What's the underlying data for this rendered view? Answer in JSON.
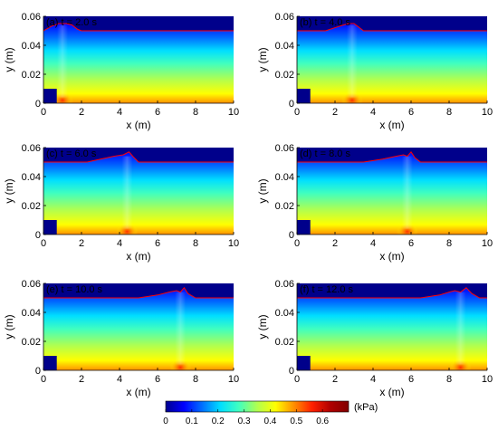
{
  "chart_data": [
    {
      "type": "heatmap",
      "title": "(a) t = 2.0 s",
      "xlabel": "x (m)",
      "ylabel": "y (m)",
      "xlim": [
        0,
        10
      ],
      "ylim": [
        0,
        0.06
      ],
      "xticks": [
        "0",
        "2",
        "4",
        "6",
        "8",
        "10"
      ],
      "yticks": [
        "0",
        "0.02",
        "0.04",
        "0.06"
      ],
      "surface_x": [
        0,
        0.4,
        0.8,
        1.2,
        1.5,
        1.8,
        2.0,
        10
      ],
      "surface_y": [
        0.05,
        0.053,
        0.055,
        0.055,
        0.054,
        0.051,
        0.05,
        0.05
      ],
      "peak_x": 1.0,
      "block_x": [
        0,
        0.7
      ],
      "block_y": [
        0,
        0.01
      ]
    },
    {
      "type": "heatmap",
      "title": "(b) t = 4.0 s",
      "xlabel": "x (m)",
      "ylabel": "y (m)",
      "xlim": [
        0,
        10
      ],
      "ylim": [
        0,
        0.06
      ],
      "xticks": [
        "0",
        "2",
        "4",
        "6",
        "8",
        "10"
      ],
      "yticks": [
        "0",
        "0.02",
        "0.04",
        "0.06"
      ],
      "surface_x": [
        0,
        1.5,
        2.2,
        2.7,
        3.0,
        3.2,
        3.5,
        10
      ],
      "surface_y": [
        0.05,
        0.05,
        0.053,
        0.055,
        0.055,
        0.053,
        0.05,
        0.05
      ],
      "peak_x": 2.9,
      "block_x": [
        0,
        0.7
      ],
      "block_y": [
        0,
        0.01
      ]
    },
    {
      "type": "heatmap",
      "title": "(c) t = 6.0 s",
      "xlabel": "x (m)",
      "ylabel": "y (m)",
      "xlim": [
        0,
        10
      ],
      "ylim": [
        0,
        0.06
      ],
      "xticks": [
        "0",
        "2",
        "4",
        "6",
        "8",
        "10"
      ],
      "yticks": [
        "0",
        "0.02",
        "0.04",
        "0.06"
      ],
      "surface_x": [
        0,
        2.3,
        3.0,
        3.7,
        4.2,
        4.5,
        4.7,
        5.0,
        10
      ],
      "surface_y": [
        0.05,
        0.05,
        0.052,
        0.054,
        0.055,
        0.057,
        0.054,
        0.05,
        0.05
      ],
      "peak_x": 4.4,
      "block_x": [
        0,
        0.7
      ],
      "block_y": [
        0,
        0.01
      ]
    },
    {
      "type": "heatmap",
      "title": "(d) t = 8.0 s",
      "xlabel": "x (m)",
      "ylabel": "y (m)",
      "xlim": [
        0,
        10
      ],
      "ylim": [
        0,
        0.06
      ],
      "xticks": [
        "0",
        "2",
        "4",
        "6",
        "8",
        "10"
      ],
      "yticks": [
        "0",
        "0.02",
        "0.04",
        "0.06"
      ],
      "surface_x": [
        0,
        3.5,
        4.5,
        5.2,
        5.6,
        5.8,
        6.0,
        6.2,
        6.5,
        10
      ],
      "surface_y": [
        0.05,
        0.05,
        0.052,
        0.054,
        0.055,
        0.054,
        0.057,
        0.053,
        0.05,
        0.05
      ],
      "peak_x": 5.8,
      "block_x": [
        0,
        0.7
      ],
      "block_y": [
        0,
        0.01
      ]
    },
    {
      "type": "heatmap",
      "title": "(e) t = 10.0 s",
      "xlabel": "x (m)",
      "ylabel": "y (m)",
      "xlim": [
        0,
        10
      ],
      "ylim": [
        0,
        0.06
      ],
      "xticks": [
        "0",
        "2",
        "4",
        "6",
        "8",
        "10"
      ],
      "yticks": [
        "0",
        "0.02",
        "0.04",
        "0.06"
      ],
      "surface_x": [
        0,
        5.0,
        6.0,
        6.6,
        7.0,
        7.2,
        7.4,
        7.6,
        8.0,
        10
      ],
      "surface_y": [
        0.05,
        0.05,
        0.052,
        0.054,
        0.055,
        0.054,
        0.057,
        0.053,
        0.05,
        0.05
      ],
      "peak_x": 7.2,
      "block_x": [
        0,
        0.7
      ],
      "block_y": [
        0,
        0.01
      ]
    },
    {
      "type": "heatmap",
      "title": "(f) t = 12.0 s",
      "xlabel": "x (m)",
      "ylabel": "y (m)",
      "xlim": [
        0,
        10
      ],
      "ylim": [
        0,
        0.06
      ],
      "xticks": [
        "0",
        "2",
        "4",
        "6",
        "8",
        "10"
      ],
      "yticks": [
        "0",
        "0.02",
        "0.04",
        "0.06"
      ],
      "surface_x": [
        0,
        6.5,
        7.5,
        8.0,
        8.3,
        8.6,
        8.9,
        9.2,
        9.6,
        10
      ],
      "surface_y": [
        0.05,
        0.05,
        0.052,
        0.054,
        0.055,
        0.054,
        0.057,
        0.053,
        0.05,
        0.05
      ],
      "peak_x": 8.6,
      "block_x": [
        0,
        0.7
      ],
      "block_y": [
        0,
        0.01
      ]
    }
  ],
  "colorbar": {
    "unit": "(kPa)",
    "min": 0,
    "max": 0.7,
    "ticks": [
      "0",
      "0.1",
      "0.2",
      "0.3",
      "0.4",
      "0.5",
      "0.6"
    ],
    "colormap": [
      "#00008f",
      "#0000ff",
      "#0070ff",
      "#00dfff",
      "#40ffbf",
      "#b0ff50",
      "#ffff00",
      "#ff9000",
      "#ff2000",
      "#b00000",
      "#800000"
    ]
  },
  "colors": {
    "surface_line": "#ff0000",
    "block": "#00008b",
    "air": "#00008b"
  }
}
